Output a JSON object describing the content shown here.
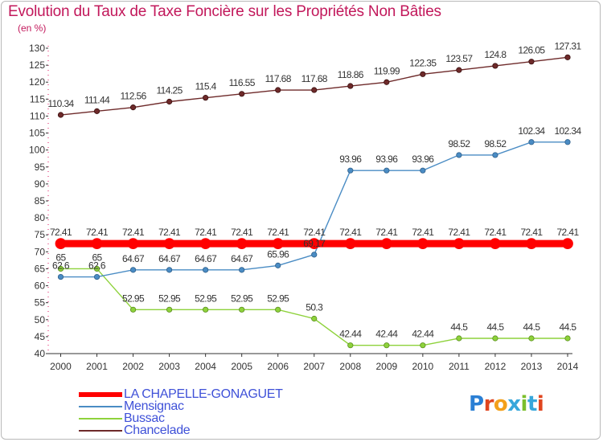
{
  "title": "Evolution du Taux de Taxe Foncière sur les Propriétés Non Bâties",
  "unit_label": "(en %)",
  "logo": {
    "letters": [
      "P",
      "r",
      "o",
      "x",
      "i",
      "t",
      "i"
    ],
    "colors": [
      "#2a7fd4",
      "#e0451f",
      "#f3a01a",
      "#37a7db",
      "#7cbf2b",
      "#37a7db",
      "#e0451f"
    ]
  },
  "chart_data": {
    "type": "line",
    "title": "Evolution du Taux de Taxe Foncière sur les Propriétés Non Bâties",
    "ylabel": "(en %)",
    "xlabel": "",
    "x": [
      "2000",
      "2001",
      "2002",
      "2003",
      "2004",
      "2005",
      "2006",
      "2007",
      "2008",
      "2009",
      "2010",
      "2011",
      "2012",
      "2013",
      "2014"
    ],
    "ylim": [
      40,
      130
    ],
    "yticks": [
      40,
      45,
      50,
      55,
      60,
      65,
      70,
      75,
      80,
      85,
      90,
      95,
      100,
      105,
      110,
      115,
      120,
      125,
      130
    ],
    "grid": false,
    "legend": "bottom-left",
    "series": [
      {
        "name": "LA CHAPELLE-GONAGUET",
        "color": "#ff0000",
        "labels": [
          "72.41",
          "72.41",
          "72.41",
          "72.41",
          "72.41",
          "72.41",
          "72.41",
          "72.41",
          "72.41",
          "72.41",
          "72.41",
          "72.41",
          "72.41",
          "72.41",
          "72.41"
        ],
        "values": [
          72.41,
          72.41,
          72.41,
          72.41,
          72.41,
          72.41,
          72.41,
          72.41,
          72.41,
          72.41,
          72.41,
          72.41,
          72.41,
          72.41,
          72.41
        ]
      },
      {
        "name": "Mensignac",
        "color": "#4a8cc4",
        "labels": [
          "62.6",
          "62.6",
          "64.67",
          "64.67",
          "64.67",
          "64.67",
          "65.96",
          "69.17",
          "93.96",
          "93.96",
          "93.96",
          "98.52",
          "98.52",
          "102.34",
          "102.34"
        ],
        "values": [
          62.6,
          62.6,
          64.67,
          64.67,
          64.67,
          64.67,
          65.96,
          69.17,
          93.96,
          93.96,
          93.96,
          98.52,
          98.52,
          102.34,
          102.34
        ]
      },
      {
        "name": "Bussac",
        "color": "#8ed23b",
        "labels": [
          "65",
          "65",
          "52.95",
          "52.95",
          "52.95",
          "52.95",
          "52.95",
          "50.3",
          "42.44",
          "42.44",
          "42.44",
          "44.5",
          "44.5",
          "44.5",
          "44.5"
        ],
        "values": [
          65,
          65,
          52.95,
          52.95,
          52.95,
          52.95,
          52.95,
          50.3,
          42.44,
          42.44,
          42.44,
          44.5,
          44.5,
          44.5,
          44.5
        ]
      },
      {
        "name": "Chancelade",
        "color": "#6e2a2a",
        "labels": [
          "110.34",
          "111.44",
          "112.56",
          "114.25",
          "115.4",
          "116.55",
          "117.68",
          "117.68",
          "118.86",
          "119.99",
          "122.35",
          "123.57",
          "124.8",
          "126.05",
          "127.31"
        ],
        "values": [
          110.34,
          111.44,
          112.56,
          114.25,
          115.4,
          116.55,
          117.68,
          117.68,
          118.86,
          119.99,
          122.35,
          123.57,
          124.8,
          126.05,
          127.31
        ]
      }
    ]
  }
}
